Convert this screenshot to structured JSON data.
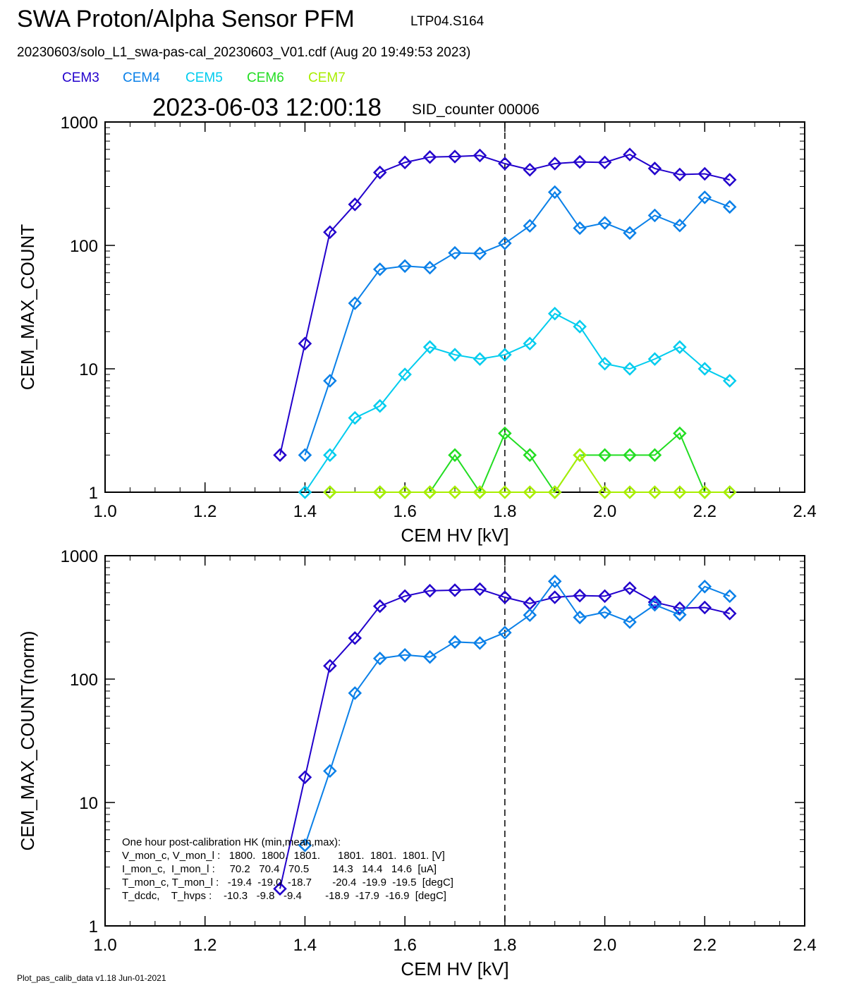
{
  "header": {
    "title": "SWA Proton/Alpha Sensor PFM",
    "subtitle": "LTP04.S164",
    "file_line": "20230603/solo_L1_swa-pas-cal_20230603_V01.cdf  (Aug 20 19:49:53 2023)",
    "timestamp": "2023-06-03 12:00:18",
    "sid_label": "SID_counter 00006"
  },
  "legend": [
    {
      "name": "CEM3",
      "color": "#2200cc"
    },
    {
      "name": "CEM4",
      "color": "#0a80e8"
    },
    {
      "name": "CEM5",
      "color": "#00ccee"
    },
    {
      "name": "CEM6",
      "color": "#22dd22"
    },
    {
      "name": "CEM7",
      "color": "#a8ee00"
    }
  ],
  "footer": "Plot_pas_calib_data v1.18 Jun-01-2021",
  "chart_data": [
    {
      "type": "line",
      "xlabel": "CEM HV [kV]",
      "ylabel": "CEM_MAX_COUNT",
      "xlim": [
        1.0,
        2.4
      ],
      "ylim": [
        1,
        1000
      ],
      "yscale": "log",
      "xticks": [
        "1.0",
        "1.2",
        "1.4",
        "1.6",
        "1.8",
        "2.0",
        "2.2",
        "2.4"
      ],
      "yticks": [
        "1",
        "10",
        "100",
        "1000"
      ],
      "vline_x": 1.8,
      "marker": "diamond",
      "series": [
        {
          "name": "CEM3",
          "color": "#2200cc",
          "x": [
            1.35,
            1.4,
            1.45,
            1.5,
            1.55,
            1.6,
            1.65,
            1.7,
            1.75,
            1.8,
            1.85,
            1.9,
            1.95,
            2.0,
            2.05,
            2.1,
            2.15,
            2.2,
            2.25
          ],
          "y": [
            2,
            16,
            128,
            215,
            390,
            470,
            520,
            525,
            535,
            460,
            410,
            460,
            475,
            470,
            545,
            420,
            375,
            380,
            340
          ]
        },
        {
          "name": "CEM4",
          "color": "#0a80e8",
          "x": [
            1.4,
            1.45,
            1.5,
            1.55,
            1.6,
            1.65,
            1.7,
            1.75,
            1.8,
            1.85,
            1.9,
            1.95,
            2.0,
            2.05,
            2.1,
            2.15,
            2.2,
            2.25
          ],
          "y": [
            2,
            8,
            34,
            64,
            68,
            66,
            87,
            86,
            104,
            144,
            270,
            138,
            152,
            126,
            175,
            145,
            245,
            205
          ]
        },
        {
          "name": "CEM5",
          "color": "#00ccee",
          "x": [
            1.4,
            1.45,
            1.5,
            1.55,
            1.6,
            1.65,
            1.7,
            1.75,
            1.8,
            1.85,
            1.9,
            1.95,
            2.0,
            2.05,
            2.1,
            2.15,
            2.2,
            2.25
          ],
          "y": [
            1,
            2,
            4,
            5,
            9,
            15,
            13,
            12,
            13,
            16,
            28,
            22,
            11,
            10,
            12,
            15,
            10,
            8
          ]
        },
        {
          "name": "CEM6",
          "color": "#22dd22",
          "x": [
            1.45,
            1.55,
            1.6,
            1.65,
            1.7,
            1.75,
            1.8,
            1.85,
            1.9,
            1.95,
            2.0,
            2.05,
            2.1,
            2.15,
            2.2,
            2.25
          ],
          "y": [
            1,
            1,
            1,
            1,
            2,
            1,
            3,
            2,
            1,
            2,
            2,
            2,
            2,
            3,
            1,
            1
          ]
        },
        {
          "name": "CEM7",
          "color": "#a8ee00",
          "x": [
            1.45,
            1.55,
            1.6,
            1.65,
            1.7,
            1.75,
            1.8,
            1.85,
            1.9,
            1.95,
            2.0,
            2.05,
            2.1,
            2.15,
            2.2,
            2.25
          ],
          "y": [
            1,
            1,
            1,
            1,
            1,
            1,
            1,
            1,
            1,
            2,
            1,
            1,
            1,
            1,
            1,
            1
          ]
        }
      ]
    },
    {
      "type": "line",
      "xlabel": "CEM HV [kV]",
      "ylabel": "CEM_MAX_COUNT(norm)",
      "xlim": [
        1.0,
        2.4
      ],
      "ylim": [
        1,
        1000
      ],
      "yscale": "log",
      "xticks": [
        "1.0",
        "1.2",
        "1.4",
        "1.6",
        "1.8",
        "2.0",
        "2.2",
        "2.4"
      ],
      "yticks": [
        "1",
        "10",
        "100",
        "1000"
      ],
      "vline_x": 1.8,
      "marker": "diamond",
      "series": [
        {
          "name": "CEM3",
          "color": "#2200cc",
          "x": [
            1.35,
            1.4,
            1.45,
            1.5,
            1.55,
            1.6,
            1.65,
            1.7,
            1.75,
            1.8,
            1.85,
            1.9,
            1.95,
            2.0,
            2.05,
            2.1,
            2.15,
            2.2,
            2.25
          ],
          "y": [
            2,
            16,
            128,
            215,
            390,
            470,
            520,
            525,
            535,
            460,
            410,
            460,
            475,
            470,
            545,
            420,
            375,
            380,
            340
          ]
        },
        {
          "name": "CEM4",
          "color": "#0a80e8",
          "x": [
            1.4,
            1.45,
            1.5,
            1.55,
            1.6,
            1.65,
            1.7,
            1.75,
            1.8,
            1.85,
            1.9,
            1.95,
            2.0,
            2.05,
            2.1,
            2.15,
            2.2,
            2.25
          ],
          "y": [
            4.5,
            18,
            77,
            147,
            157,
            151,
            200,
            196,
            238,
            330,
            620,
            316,
            348,
            290,
            400,
            332,
            562,
            470
          ]
        }
      ],
      "hk_text": [
        "One hour post-calibration HK (min,mean,max):",
        "V_mon_c, V_mon_l :   1800.  1800.  1801.      1801.  1801.  1801. [V]",
        "I_mon_c,  I_mon_l :     70.2   70.4   70.5        14.3   14.4   14.6  [uA]",
        "T_mon_c, T_mon_l :   -19.4  -19.0  -18.7       -20.4  -19.9  -19.5  [degC]",
        "T_dcdc,    T_hvps :    -10.3   -9.8   -9.4        -18.9  -17.9  -16.9  [degC]"
      ]
    }
  ]
}
